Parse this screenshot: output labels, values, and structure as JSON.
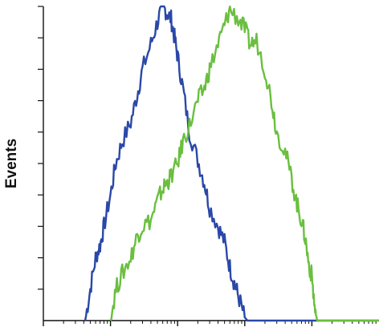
{
  "chart_data": {
    "type": "line",
    "ylabel": "Events",
    "xlabel": "",
    "xscale": "log",
    "xlim": [
      0.1,
      10000
    ],
    "ylim": [
      0,
      100
    ],
    "y_ticks": [
      10,
      20,
      30,
      40,
      50,
      60,
      70,
      80,
      90,
      100
    ],
    "y_tick_labels_shown": false,
    "x_tick_labels_shown": false,
    "grid": false,
    "legend": "none",
    "series": [
      {
        "color": "#2a48a8",
        "x": [
          0.42,
          0.5,
          0.6,
          0.7,
          0.8,
          1,
          1.2,
          1.5,
          2,
          2.5,
          3,
          4,
          5,
          6,
          7,
          8,
          9,
          10,
          12,
          15,
          20,
          25,
          30,
          40,
          50,
          60,
          70,
          80,
          100,
          110,
          120
        ],
        "y": [
          0,
          10,
          20,
          24,
          30,
          40,
          50,
          57,
          63,
          72,
          80,
          88,
          95,
          100,
          98,
          96,
          90,
          84,
          74,
          60,
          51,
          44,
          36,
          30,
          25,
          17,
          12,
          8,
          1,
          0,
          0
        ]
      },
      {
        "color": "#6abf3f",
        "x": [
          1,
          1.2,
          1.5,
          2,
          2.5,
          3,
          4,
          5,
          6,
          7,
          8,
          10,
          12,
          15,
          20,
          25,
          30,
          40,
          50,
          60,
          80,
          100,
          120,
          150,
          200,
          250,
          300,
          400,
          500,
          600,
          700,
          800,
          900,
          1000,
          1100,
          1200,
          1300
        ],
        "y": [
          0,
          10,
          15,
          20,
          27,
          30,
          32,
          38,
          42,
          44,
          46,
          50,
          57,
          62,
          70,
          74,
          80,
          88,
          94,
          99,
          96,
          93,
          88,
          89,
          80,
          70,
          60,
          54,
          45,
          37,
          32,
          26,
          18,
          14,
          4,
          0,
          0
        ]
      }
    ]
  }
}
